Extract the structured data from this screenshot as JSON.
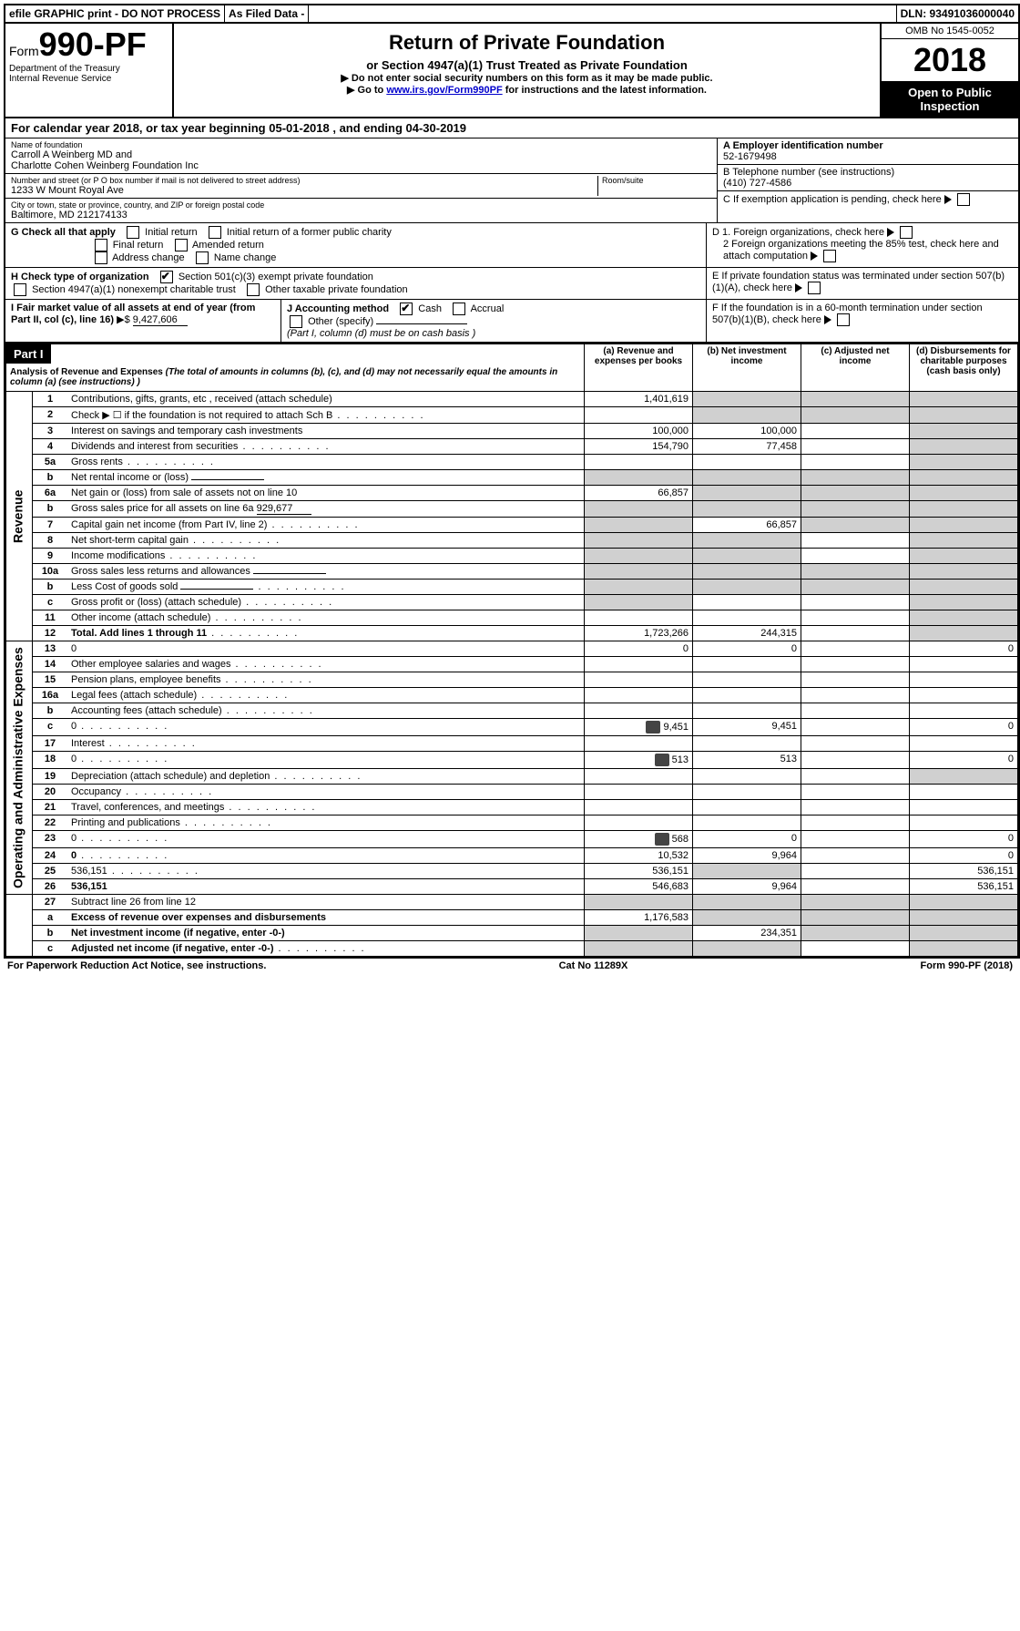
{
  "top": {
    "efile": "efile GRAPHIC print - DO NOT PROCESS",
    "asfiled": "As Filed Data -",
    "dln": "DLN: 93491036000040"
  },
  "header": {
    "form_label": "Form",
    "form_num": "990-PF",
    "dept": "Department of the Treasury",
    "irs": "Internal Revenue Service",
    "title": "Return of Private Foundation",
    "subtitle": "or Section 4947(a)(1) Trust Treated as Private Foundation",
    "instr1": "▶ Do not enter social security numbers on this form as it may be made public.",
    "instr2_pre": "▶ Go to ",
    "instr2_link": "www.irs.gov/Form990PF",
    "instr2_post": " for instructions and the latest information.",
    "omb": "OMB No 1545-0052",
    "year": "2018",
    "open": "Open to Public Inspection"
  },
  "cal": {
    "pre": "For calendar year 2018, or tax year beginning ",
    "begin": "05-01-2018",
    "mid": " , and ending ",
    "end": "04-30-2019"
  },
  "info": {
    "name_lbl": "Name of foundation",
    "name1": "Carroll A Weinberg MD and",
    "name2": "Charlotte Cohen Weinberg Foundation Inc",
    "addr_lbl": "Number and street (or P O  box number if mail is not delivered to street address)",
    "room_lbl": "Room/suite",
    "addr": "1233 W Mount Royal Ave",
    "city_lbl": "City or town, state or province, country, and ZIP or foreign postal code",
    "city": "Baltimore, MD  212174133",
    "a_lbl": "A Employer identification number",
    "a_val": "52-1679498",
    "b_lbl": "B Telephone number (see instructions)",
    "b_val": "(410) 727-4586",
    "c_lbl": "C If exemption application is pending, check here",
    "d1": "D 1. Foreign organizations, check here",
    "d2": "2 Foreign organizations meeting the 85% test, check here and attach computation",
    "e": "E  If private foundation status was terminated under section 507(b)(1)(A), check here",
    "f": "F  If the foundation is in a 60-month termination under section 507(b)(1)(B), check here"
  },
  "checks": {
    "g_lbl": "G Check all that apply",
    "g1": "Initial return",
    "g2": "Initial return of a former public charity",
    "g3": "Final return",
    "g4": "Amended return",
    "g5": "Address change",
    "g6": "Name change",
    "h_lbl": "H Check type of organization",
    "h1": "Section 501(c)(3) exempt private foundation",
    "h2": "Section 4947(a)(1) nonexempt charitable trust",
    "h3": "Other taxable private foundation",
    "i_lbl": "I Fair market value of all assets at end of year (from Part II, col  (c), line 16)",
    "i_val": "9,427,606",
    "j_lbl": "J Accounting method",
    "j1": "Cash",
    "j2": "Accrual",
    "j3": "Other (specify)",
    "j_note": "(Part I, column (d) must be on cash basis )"
  },
  "part1": {
    "label": "Part I",
    "title": "Analysis of Revenue and Expenses",
    "note": "(The total of amounts in columns (b), (c), and (d) may not necessarily equal the amounts in column (a) (see instructions) )",
    "col_a": "(a)  Revenue and expenses per books",
    "col_b": "(b) Net investment income",
    "col_c": "(c) Adjusted net income",
    "col_d": "(d) Disbursements for charitable purposes (cash basis only)"
  },
  "side": {
    "revenue": "Revenue",
    "expenses": "Operating and Administrative Expenses"
  },
  "rows": [
    {
      "n": "1",
      "d": "Contributions, gifts, grants, etc , received (attach schedule)",
      "a": "1,401,619",
      "b_shade": true,
      "c_shade": true,
      "d_shade": true
    },
    {
      "n": "2",
      "d": "Check ▶ ☐ if the foundation is not required to attach Sch B",
      "a": "",
      "b_shade": true,
      "c_shade": true,
      "d_shade": true,
      "dots": true
    },
    {
      "n": "3",
      "d": "Interest on savings and temporary cash investments",
      "a": "100,000",
      "b": "100,000",
      "d_shade": true
    },
    {
      "n": "4",
      "d": "Dividends and interest from securities",
      "a": "154,790",
      "b": "77,458",
      "d_shade": true,
      "dots": true
    },
    {
      "n": "5a",
      "d": "Gross rents",
      "a": "",
      "d_shade": true,
      "dots": true
    },
    {
      "n": "b",
      "d": "Net rental income or (loss)",
      "a_shade": true,
      "b_shade": true,
      "c_shade": true,
      "d_shade": true,
      "inline": true
    },
    {
      "n": "6a",
      "d": "Net gain or (loss) from sale of assets not on line 10",
      "a": "66,857",
      "b_shade": true,
      "c_shade": true,
      "d_shade": true
    },
    {
      "n": "b",
      "d": "Gross sales price for all assets on line 6a",
      "inline_val": "929,677",
      "a_shade": true,
      "b_shade": true,
      "c_shade": true,
      "d_shade": true
    },
    {
      "n": "7",
      "d": "Capital gain net income (from Part IV, line 2)",
      "a_shade": true,
      "b": "66,857",
      "c_shade": true,
      "d_shade": true,
      "dots": true
    },
    {
      "n": "8",
      "d": "Net short-term capital gain",
      "a_shade": true,
      "b_shade": true,
      "d_shade": true,
      "dots": true
    },
    {
      "n": "9",
      "d": "Income modifications",
      "a_shade": true,
      "b_shade": true,
      "d_shade": true,
      "dots": true
    },
    {
      "n": "10a",
      "d": "Gross sales less returns and allowances",
      "a_shade": true,
      "b_shade": true,
      "c_shade": true,
      "d_shade": true,
      "inline": true
    },
    {
      "n": "b",
      "d": "Less  Cost of goods sold",
      "a_shade": true,
      "b_shade": true,
      "c_shade": true,
      "d_shade": true,
      "inline": true,
      "dots": true
    },
    {
      "n": "c",
      "d": "Gross profit or (loss) (attach schedule)",
      "a_shade": true,
      "d_shade": true,
      "dots": true
    },
    {
      "n": "11",
      "d": "Other income (attach schedule)",
      "d_shade": true,
      "dots": true
    },
    {
      "n": "12",
      "d": "Total. Add lines 1 through 11",
      "a": "1,723,266",
      "b": "244,315",
      "d_shade": true,
      "bold": true,
      "dots": true
    }
  ],
  "exp_rows": [
    {
      "n": "13",
      "d": "0",
      "a": "0",
      "b": "0"
    },
    {
      "n": "14",
      "d": "Other employee salaries and wages",
      "dots": true
    },
    {
      "n": "15",
      "d": "Pension plans, employee benefits",
      "dots": true
    },
    {
      "n": "16a",
      "d": "Legal fees (attach schedule)",
      "dots": true
    },
    {
      "n": "b",
      "d": "Accounting fees (attach schedule)",
      "dots": true
    },
    {
      "n": "c",
      "d": "0",
      "a": "9,451",
      "b": "9,451",
      "icon": true,
      "dots": true
    },
    {
      "n": "17",
      "d": "Interest",
      "dots": true
    },
    {
      "n": "18",
      "d": "0",
      "a": "513",
      "b": "513",
      "icon": true,
      "dots": true
    },
    {
      "n": "19",
      "d": "Depreciation (attach schedule) and depletion",
      "d_shade": true,
      "dots": true
    },
    {
      "n": "20",
      "d": "Occupancy",
      "dots": true
    },
    {
      "n": "21",
      "d": "Travel, conferences, and meetings",
      "dots": true
    },
    {
      "n": "22",
      "d": "Printing and publications",
      "dots": true
    },
    {
      "n": "23",
      "d": "0",
      "a": "568",
      "b": "0",
      "icon": true,
      "dots": true
    },
    {
      "n": "24",
      "d": "0",
      "a": "10,532",
      "b": "9,964",
      "bold": true,
      "dots": true
    },
    {
      "n": "25",
      "d": "536,151",
      "a": "536,151",
      "b_shade": true,
      "dots": true
    },
    {
      "n": "26",
      "d": "536,151",
      "a": "546,683",
      "b": "9,964",
      "bold": true
    }
  ],
  "net_rows": [
    {
      "n": "27",
      "d": "Subtract line 26 from line 12",
      "a_shade": true,
      "b_shade": true,
      "c_shade": true,
      "d_shade": true
    },
    {
      "n": "a",
      "d": "Excess of revenue over expenses and disbursements",
      "a": "1,176,583",
      "b_shade": true,
      "c_shade": true,
      "d_shade": true,
      "bold": true
    },
    {
      "n": "b",
      "d": "Net investment income (if negative, enter -0-)",
      "a_shade": true,
      "b": "234,351",
      "c_shade": true,
      "d_shade": true,
      "bold": true
    },
    {
      "n": "c",
      "d": "Adjusted net income (if negative, enter -0-)",
      "a_shade": true,
      "b_shade": true,
      "d_shade": true,
      "bold": true,
      "dots": true
    }
  ],
  "footer": {
    "left": "For Paperwork Reduction Act Notice, see instructions.",
    "mid": "Cat  No  11289X",
    "right": "Form 990-PF (2018)"
  }
}
